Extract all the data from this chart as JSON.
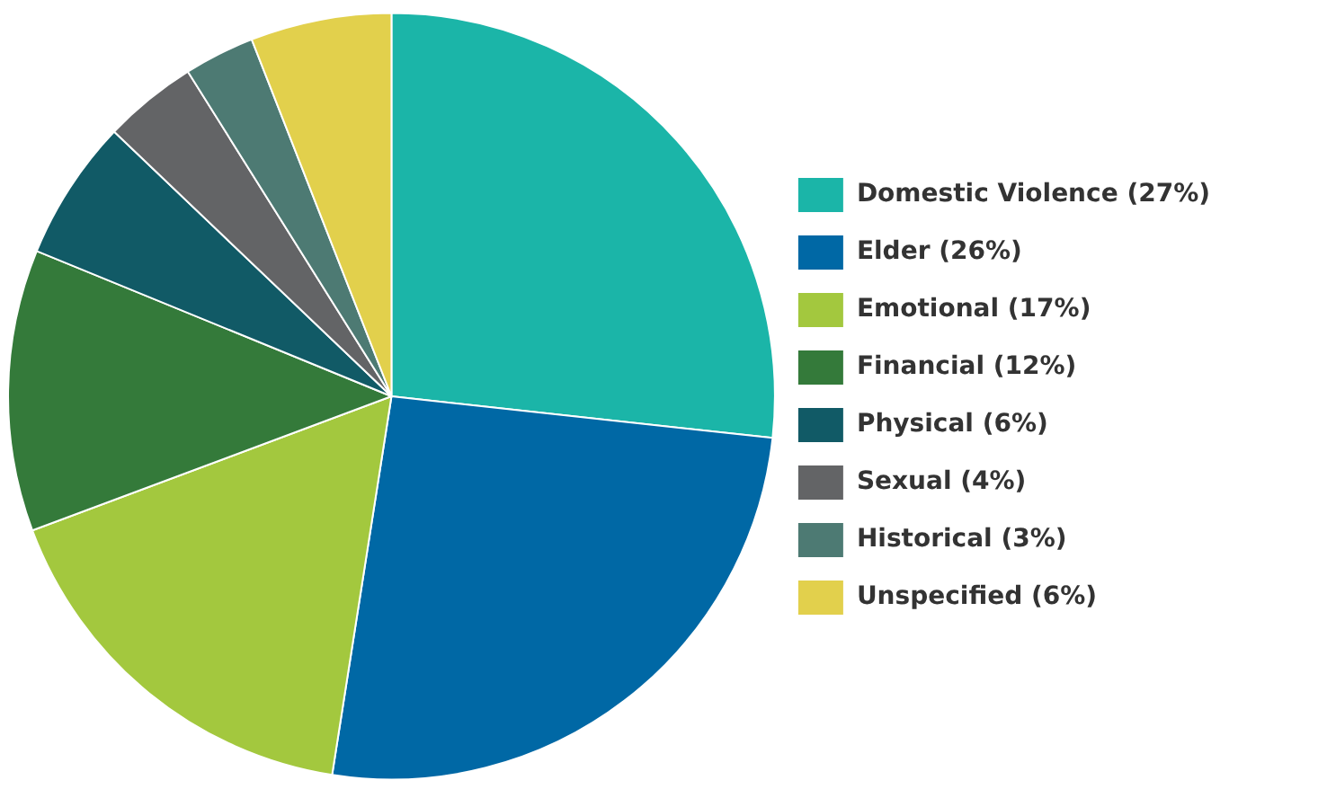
{
  "chart_data": {
    "type": "pie",
    "categories": [
      "Domestic Violence (27%)",
      "Elder (26%)",
      "Emotional (17%)",
      "Financial (12%)",
      "Physical (6%)",
      "Sexual (4%)",
      "Historical (3%)",
      "Unspecified (6%)"
    ],
    "values": [
      27,
      26,
      17,
      12,
      6,
      4,
      3,
      6
    ],
    "colors": [
      "#1bb5a8",
      "#0068a5",
      "#a3c83e",
      "#347a3a",
      "#115a66",
      "#636466",
      "#4d7a73",
      "#e2d04c"
    ],
    "legend": "right"
  }
}
